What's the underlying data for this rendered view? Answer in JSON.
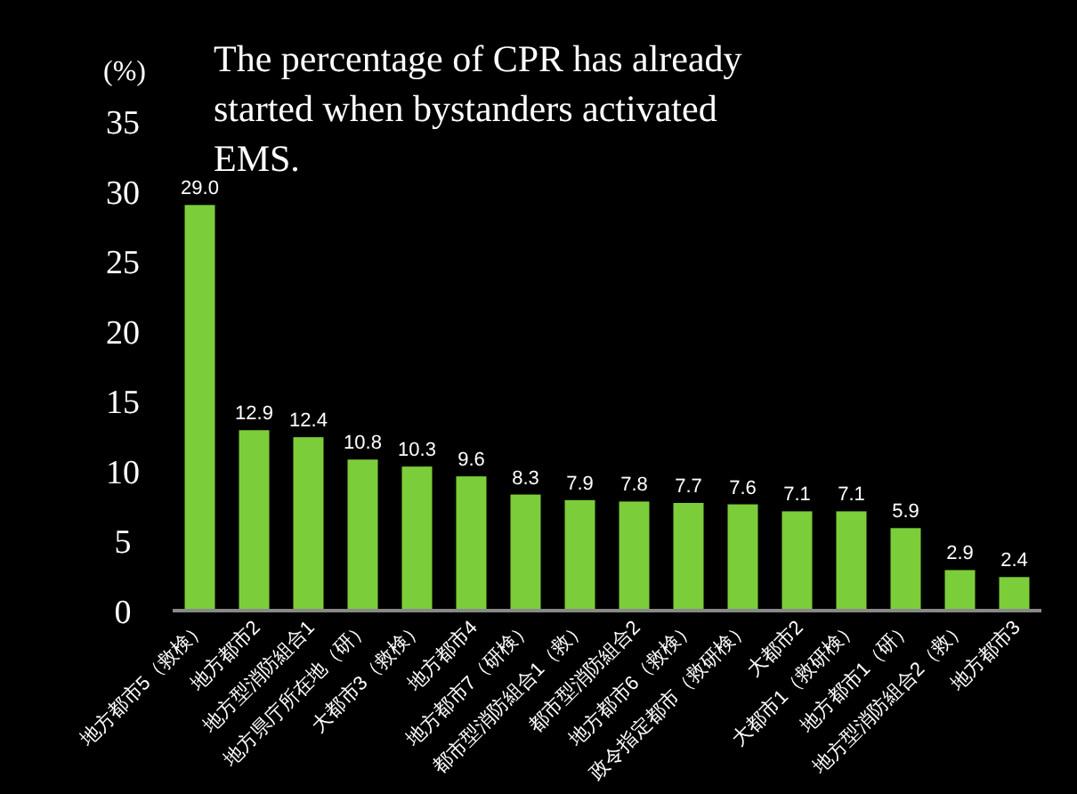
{
  "chart_data": {
    "type": "bar",
    "title": "The percentage of CPR has already started when bystanders activated EMS.",
    "ylabel": "(%)",
    "categories": [
      "地方都市5（救検）",
      "地方都市2",
      "地方型消防組合1",
      "地方県庁所在地（研）",
      "大都市3（救検）",
      "地方都市4",
      "地方都市7（研検）",
      "都市型消防組合1（救）",
      "都市型消防組合2",
      "地方都市6（救検）",
      "政令指定都市（救研検）",
      "大都市2",
      "大都市1（救研検）",
      "地方都市1（研）",
      "地方型消防組合2（救）",
      "地方都市3"
    ],
    "values": [
      29.0,
      12.9,
      12.4,
      10.8,
      10.3,
      9.6,
      8.3,
      7.9,
      7.8,
      7.7,
      7.6,
      7.1,
      7.1,
      5.9,
      2.9,
      2.4
    ],
    "value_labels": [
      "29.0",
      "12.9",
      "12.4",
      "10.8",
      "10.3",
      "9.6",
      "8.3",
      "7.9",
      "7.8",
      "7.7",
      "7.6",
      "7.1",
      "7.1",
      "5.9",
      "2.9",
      "2.4"
    ],
    "color": "#7ccd3a",
    "ylim": [
      0,
      35
    ],
    "yticks": [
      0,
      5,
      10,
      15,
      20,
      25,
      30,
      35
    ],
    "grid": false
  }
}
